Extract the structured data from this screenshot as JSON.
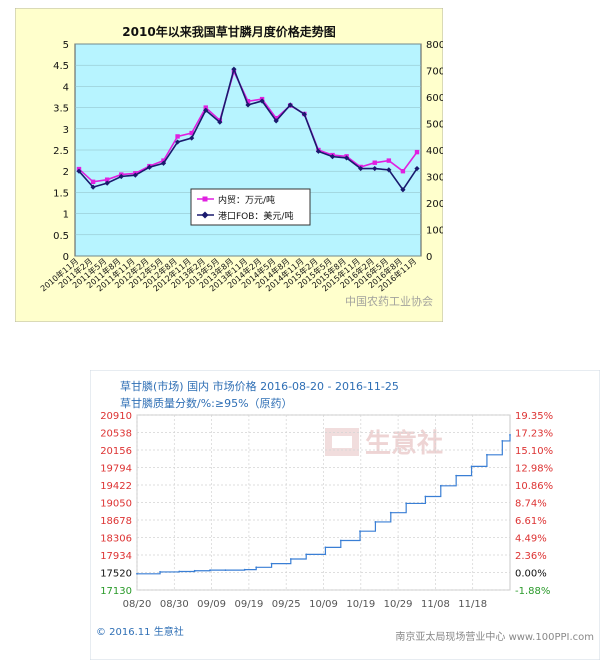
{
  "chart_data": [
    {
      "type": "line",
      "title": "2010年以来我国草甘膦月度价格走势图",
      "x": [
        "2010年11月",
        "2011年2月",
        "2011年5月",
        "2011年8月",
        "2011年11月",
        "2012年2月",
        "2012年5月",
        "2012年8月",
        "2012年11月",
        "2013年2月",
        "2013年5月",
        "2013年8月",
        "2013年11月",
        "2014年2月",
        "2014年5月",
        "2014年8月",
        "2014年11月",
        "2015年2月",
        "2015年5月",
        "2015年8月",
        "2015年11月",
        "2016年2月",
        "2016年5月",
        "2016年8月",
        "2016年11月"
      ],
      "x_label_text": [
        "2010年11月",
        "2011年2月",
        "2011年5月",
        "2011年8月",
        "2011年11月",
        "2012年2月",
        "2012年5月",
        "2012年8月",
        "2012年11月",
        "2013年2月",
        "2013年5月",
        "2013年8月",
        "2013年11月",
        "2014年2月",
        "2014年5月",
        "2014年8月",
        "2014年11月",
        "2015年2月",
        "2015年5月",
        "2015年8月",
        "2015年11月",
        "2016年2月",
        "2016年5月",
        "2016年8月",
        "2016年11月"
      ],
      "left_yticks": [
        "5",
        "4.5",
        "4",
        "3.5",
        "3",
        "2.5",
        "2",
        "1.5",
        "1",
        "0.5",
        "0"
      ],
      "right_yticks": [
        "8000",
        "7000",
        "6000",
        "5000",
        "4000",
        "3000",
        "2000",
        "1000",
        "0"
      ],
      "ylim_left": [
        0,
        5
      ],
      "ylim_right": [
        0,
        8000
      ],
      "legend_position": "center-bottom",
      "series": [
        {
          "name": "内贸：万元/吨",
          "axis": "left",
          "color": "#e020e0",
          "values": [
            2.05,
            1.75,
            1.8,
            1.92,
            1.95,
            2.12,
            2.25,
            2.82,
            2.9,
            3.5,
            3.2,
            4.35,
            3.65,
            3.7,
            3.25,
            3.55,
            3.35,
            2.5,
            2.38,
            2.35,
            2.1,
            2.2,
            2.25,
            2.0,
            2.45
          ]
        },
        {
          "name": "港口FOB：美元/吨",
          "axis": "right",
          "color": "#1a1a6e",
          "values": [
            3200,
            2600,
            2750,
            3000,
            3050,
            3350,
            3500,
            4300,
            4450,
            5500,
            5050,
            7050,
            5700,
            5850,
            5100,
            5700,
            5350,
            3950,
            3750,
            3700,
            3300,
            3300,
            3250,
            2500,
            3300
          ]
        }
      ],
      "watermark": "中国农药工业协会"
    },
    {
      "type": "line",
      "title": "草甘膦(市场) 国内 市场价格 2016-08-20 - 2016-11-25",
      "subtitle": "草甘膦质量分数/%:≥95%（原药）",
      "x_ticks": [
        "08/20",
        "08/30",
        "09/09",
        "09/19",
        "09/25",
        "10/09",
        "10/19",
        "10/29",
        "11/08",
        "11/18"
      ],
      "left_yticks": [
        "20910",
        "20538",
        "20156",
        "19794",
        "19422",
        "19050",
        "18678",
        "18306",
        "17934",
        "17520",
        "17130"
      ],
      "right_yticks": [
        "19.35%",
        "17.23%",
        "15.10%",
        "12.98%",
        "10.86%",
        "8.74%",
        "6.61%",
        "4.49%",
        "2.36%",
        "0.00%",
        "-1.88%"
      ],
      "ylim": [
        17130,
        20910
      ],
      "series": [
        {
          "name": "市场价格",
          "color": "#3a7fd5",
          "x": [
            0,
            6,
            11,
            15,
            19,
            23,
            28,
            31,
            35,
            40,
            44,
            49,
            53,
            58,
            62,
            66,
            70,
            75,
            79,
            83,
            87,
            91,
            95,
            97
          ],
          "values": [
            17480,
            17520,
            17530,
            17545,
            17560,
            17560,
            17570,
            17620,
            17700,
            17800,
            17900,
            18050,
            18200,
            18400,
            18600,
            18800,
            19000,
            19150,
            19380,
            19600,
            19800,
            20050,
            20350,
            20480
          ]
        }
      ],
      "footer_left": "© 2016.11 生意社",
      "footer_right": "南京亚太局现场营业中心    www.100PPI.com",
      "watermark": "生意社"
    }
  ]
}
